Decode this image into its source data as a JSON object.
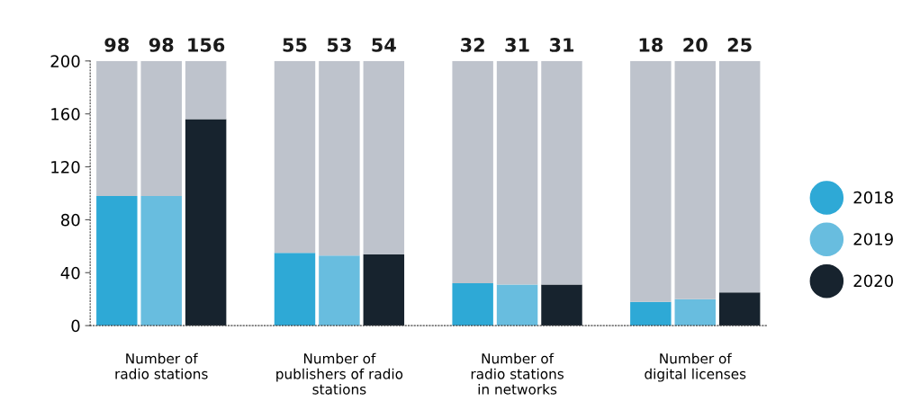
{
  "chart_data": {
    "type": "bar",
    "stacked": true,
    "categories": [
      null,
      "Number of\nradio stations",
      null,
      null,
      null,
      "Number of\npublishers of radio\nstations",
      null,
      null,
      null,
      "Number of\nradio stations\nin networks",
      null,
      null,
      null,
      "Number of\ndigital licenses",
      null
    ],
    "series": [
      {
        "name": "2018",
        "color": "#2ea9d6",
        "values": [
          98,
          null,
          null,
          null,
          55,
          null,
          null,
          null,
          32,
          null,
          null,
          null,
          18,
          null,
          null
        ]
      },
      {
        "name": "2019",
        "color": "#68bddf",
        "values": [
          null,
          98,
          null,
          null,
          null,
          53,
          null,
          null,
          null,
          31,
          null,
          null,
          null,
          20,
          null
        ]
      },
      {
        "name": "2020",
        "color": "#17232e",
        "values": [
          null,
          null,
          156,
          null,
          null,
          null,
          54,
          null,
          null,
          null,
          31,
          null,
          null,
          null,
          25
        ]
      },
      {
        "color": "#bec3cc",
        "values": [
          102,
          102,
          44,
          null,
          145,
          147,
          146,
          null,
          168,
          169,
          169,
          null,
          182,
          180,
          175
        ]
      }
    ],
    "annotations": [
      "98",
      "98",
      "156",
      "55",
      "53",
      "54",
      "32",
      "31",
      "31",
      "18",
      "20",
      "25"
    ],
    "ylim": [
      0,
      200
    ],
    "yticks": [
      0,
      40,
      80,
      120,
      160,
      200
    ],
    "grid": false,
    "legend": "right",
    "marker": "circle"
  }
}
